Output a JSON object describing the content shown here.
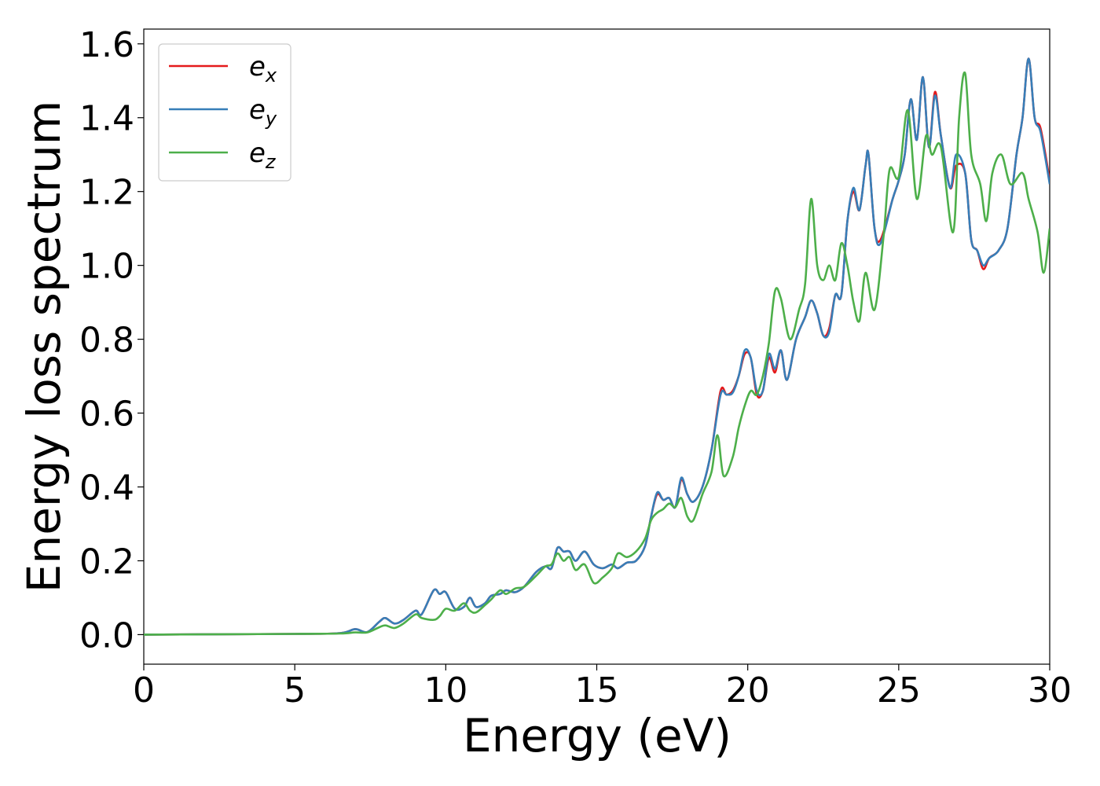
{
  "chart_data": {
    "type": "line",
    "title": "",
    "xlabel": "Energy (eV)",
    "ylabel": "Energy loss spectrum",
    "xlim": [
      0,
      30
    ],
    "ylim": [
      -0.08,
      1.64
    ],
    "xticks": [
      0,
      5,
      10,
      15,
      20,
      25,
      30
    ],
    "xtick_labels": [
      "0",
      "5",
      "10",
      "15",
      "20",
      "25",
      "30"
    ],
    "yticks": [
      0.0,
      0.2,
      0.4,
      0.6,
      0.8,
      1.0,
      1.2,
      1.4,
      1.6
    ],
    "ytick_labels": [
      "0.0",
      "0.2",
      "0.4",
      "0.6",
      "0.8",
      "1.0",
      "1.2",
      "1.4",
      "1.6"
    ],
    "grid": false,
    "legend_position": "top-left",
    "series": [
      {
        "name": "e",
        "subscript": "x",
        "color": "#e41a1c",
        "points": [
          [
            0,
            0
          ],
          [
            5,
            0.002
          ],
          [
            6.5,
            0.004
          ],
          [
            7,
            0.015
          ],
          [
            7.4,
            0.007
          ],
          [
            7.8,
            0.035
          ],
          [
            8.0,
            0.045
          ],
          [
            8.3,
            0.03
          ],
          [
            8.6,
            0.04
          ],
          [
            9.0,
            0.065
          ],
          [
            9.2,
            0.055
          ],
          [
            9.6,
            0.12
          ],
          [
            9.8,
            0.11
          ],
          [
            10.0,
            0.115
          ],
          [
            10.3,
            0.07
          ],
          [
            10.6,
            0.075
          ],
          [
            10.8,
            0.1
          ],
          [
            11.0,
            0.075
          ],
          [
            11.3,
            0.085
          ],
          [
            11.5,
            0.105
          ],
          [
            11.8,
            0.11
          ],
          [
            12.0,
            0.12
          ],
          [
            12.3,
            0.115
          ],
          [
            12.6,
            0.13
          ],
          [
            13.0,
            0.17
          ],
          [
            13.3,
            0.185
          ],
          [
            13.5,
            0.18
          ],
          [
            13.7,
            0.235
          ],
          [
            13.9,
            0.225
          ],
          [
            14.1,
            0.225
          ],
          [
            14.3,
            0.2
          ],
          [
            14.6,
            0.225
          ],
          [
            14.9,
            0.19
          ],
          [
            15.2,
            0.18
          ],
          [
            15.5,
            0.19
          ],
          [
            15.7,
            0.18
          ],
          [
            16.0,
            0.195
          ],
          [
            16.3,
            0.2
          ],
          [
            16.6,
            0.24
          ],
          [
            16.8,
            0.32
          ],
          [
            17.0,
            0.38
          ],
          [
            17.2,
            0.365
          ],
          [
            17.4,
            0.37
          ],
          [
            17.6,
            0.345
          ],
          [
            17.8,
            0.42
          ],
          [
            18.0,
            0.38
          ],
          [
            18.2,
            0.36
          ],
          [
            18.5,
            0.4
          ],
          [
            18.8,
            0.5
          ],
          [
            19.1,
            0.66
          ],
          [
            19.3,
            0.65
          ],
          [
            19.5,
            0.66
          ],
          [
            19.7,
            0.7
          ],
          [
            19.9,
            0.76
          ],
          [
            20.1,
            0.75
          ],
          [
            20.3,
            0.65
          ],
          [
            20.5,
            0.66
          ],
          [
            20.7,
            0.75
          ],
          [
            20.9,
            0.71
          ],
          [
            21.1,
            0.77
          ],
          [
            21.3,
            0.69
          ],
          [
            21.6,
            0.8
          ],
          [
            21.9,
            0.86
          ],
          [
            22.1,
            0.905
          ],
          [
            22.3,
            0.87
          ],
          [
            22.5,
            0.81
          ],
          [
            22.7,
            0.83
          ],
          [
            22.9,
            0.92
          ],
          [
            23.1,
            0.92
          ],
          [
            23.3,
            1.12
          ],
          [
            23.5,
            1.2
          ],
          [
            23.7,
            1.15
          ],
          [
            23.9,
            1.27
          ],
          [
            24.0,
            1.3
          ],
          [
            24.2,
            1.1
          ],
          [
            24.4,
            1.07
          ],
          [
            24.8,
            1.18
          ],
          [
            25.0,
            1.23
          ],
          [
            25.2,
            1.3
          ],
          [
            25.4,
            1.45
          ],
          [
            25.6,
            1.34
          ],
          [
            25.8,
            1.51
          ],
          [
            26.0,
            1.32
          ],
          [
            26.2,
            1.47
          ],
          [
            26.4,
            1.35
          ],
          [
            26.7,
            1.21
          ],
          [
            26.9,
            1.27
          ],
          [
            27.2,
            1.25
          ],
          [
            27.4,
            1.07
          ],
          [
            27.6,
            1.04
          ],
          [
            27.8,
            0.99
          ],
          [
            28.0,
            1.02
          ],
          [
            28.3,
            1.04
          ],
          [
            28.6,
            1.1
          ],
          [
            28.9,
            1.3
          ],
          [
            29.1,
            1.4
          ],
          [
            29.3,
            1.56
          ],
          [
            29.5,
            1.4
          ],
          [
            29.7,
            1.37
          ],
          [
            30.0,
            1.23
          ]
        ]
      },
      {
        "name": "e",
        "subscript": "y",
        "color": "#377eb8",
        "points": [
          [
            0,
            0
          ],
          [
            5,
            0.002
          ],
          [
            6.5,
            0.004
          ],
          [
            7,
            0.015
          ],
          [
            7.4,
            0.007
          ],
          [
            7.8,
            0.035
          ],
          [
            8.0,
            0.045
          ],
          [
            8.3,
            0.03
          ],
          [
            8.6,
            0.04
          ],
          [
            9.0,
            0.065
          ],
          [
            9.2,
            0.055
          ],
          [
            9.6,
            0.12
          ],
          [
            9.8,
            0.11
          ],
          [
            10.0,
            0.115
          ],
          [
            10.3,
            0.07
          ],
          [
            10.6,
            0.075
          ],
          [
            10.8,
            0.1
          ],
          [
            11.0,
            0.075
          ],
          [
            11.3,
            0.085
          ],
          [
            11.5,
            0.105
          ],
          [
            11.8,
            0.11
          ],
          [
            12.0,
            0.12
          ],
          [
            12.3,
            0.115
          ],
          [
            12.6,
            0.13
          ],
          [
            13.0,
            0.17
          ],
          [
            13.3,
            0.185
          ],
          [
            13.5,
            0.18
          ],
          [
            13.7,
            0.235
          ],
          [
            13.9,
            0.225
          ],
          [
            14.1,
            0.225
          ],
          [
            14.3,
            0.2
          ],
          [
            14.6,
            0.225
          ],
          [
            14.9,
            0.19
          ],
          [
            15.2,
            0.18
          ],
          [
            15.5,
            0.19
          ],
          [
            15.7,
            0.18
          ],
          [
            16.0,
            0.195
          ],
          [
            16.3,
            0.2
          ],
          [
            16.6,
            0.24
          ],
          [
            16.8,
            0.32
          ],
          [
            17.0,
            0.385
          ],
          [
            17.2,
            0.365
          ],
          [
            17.4,
            0.37
          ],
          [
            17.6,
            0.345
          ],
          [
            17.8,
            0.425
          ],
          [
            18.0,
            0.38
          ],
          [
            18.2,
            0.36
          ],
          [
            18.5,
            0.4
          ],
          [
            18.8,
            0.5
          ],
          [
            19.1,
            0.65
          ],
          [
            19.3,
            0.65
          ],
          [
            19.5,
            0.655
          ],
          [
            19.7,
            0.7
          ],
          [
            19.9,
            0.77
          ],
          [
            20.1,
            0.75
          ],
          [
            20.3,
            0.66
          ],
          [
            20.5,
            0.66
          ],
          [
            20.7,
            0.76
          ],
          [
            20.9,
            0.72
          ],
          [
            21.1,
            0.77
          ],
          [
            21.3,
            0.69
          ],
          [
            21.6,
            0.8
          ],
          [
            21.9,
            0.86
          ],
          [
            22.1,
            0.905
          ],
          [
            22.3,
            0.87
          ],
          [
            22.5,
            0.81
          ],
          [
            22.7,
            0.82
          ],
          [
            22.9,
            0.92
          ],
          [
            23.1,
            0.92
          ],
          [
            23.3,
            1.12
          ],
          [
            23.5,
            1.21
          ],
          [
            23.7,
            1.15
          ],
          [
            23.9,
            1.27
          ],
          [
            24.0,
            1.3
          ],
          [
            24.2,
            1.1
          ],
          [
            24.4,
            1.06
          ],
          [
            24.8,
            1.18
          ],
          [
            25.0,
            1.23
          ],
          [
            25.2,
            1.3
          ],
          [
            25.4,
            1.45
          ],
          [
            25.6,
            1.34
          ],
          [
            25.8,
            1.51
          ],
          [
            26.0,
            1.32
          ],
          [
            26.2,
            1.46
          ],
          [
            26.4,
            1.35
          ],
          [
            26.7,
            1.21
          ],
          [
            26.9,
            1.3
          ],
          [
            27.2,
            1.25
          ],
          [
            27.4,
            1.07
          ],
          [
            27.6,
            1.04
          ],
          [
            27.8,
            1.0
          ],
          [
            28.0,
            1.02
          ],
          [
            28.3,
            1.04
          ],
          [
            28.6,
            1.1
          ],
          [
            28.9,
            1.3
          ],
          [
            29.1,
            1.4
          ],
          [
            29.3,
            1.56
          ],
          [
            29.5,
            1.4
          ],
          [
            29.7,
            1.36
          ],
          [
            30.0,
            1.22
          ]
        ]
      },
      {
        "name": "e",
        "subscript": "z",
        "color": "#4daf4a",
        "points": [
          [
            0,
            0
          ],
          [
            5,
            0.002
          ],
          [
            6.5,
            0.003
          ],
          [
            7,
            0.006
          ],
          [
            7.4,
            0.006
          ],
          [
            7.8,
            0.02
          ],
          [
            8.0,
            0.025
          ],
          [
            8.3,
            0.018
          ],
          [
            8.6,
            0.03
          ],
          [
            9.0,
            0.055
          ],
          [
            9.2,
            0.045
          ],
          [
            9.6,
            0.04
          ],
          [
            9.8,
            0.05
          ],
          [
            10.0,
            0.07
          ],
          [
            10.3,
            0.065
          ],
          [
            10.6,
            0.085
          ],
          [
            10.8,
            0.065
          ],
          [
            11.0,
            0.06
          ],
          [
            11.3,
            0.08
          ],
          [
            11.5,
            0.095
          ],
          [
            11.8,
            0.12
          ],
          [
            12.0,
            0.11
          ],
          [
            12.3,
            0.125
          ],
          [
            12.6,
            0.13
          ],
          [
            13.0,
            0.16
          ],
          [
            13.3,
            0.185
          ],
          [
            13.5,
            0.19
          ],
          [
            13.7,
            0.22
          ],
          [
            13.9,
            0.2
          ],
          [
            14.1,
            0.21
          ],
          [
            14.3,
            0.175
          ],
          [
            14.6,
            0.19
          ],
          [
            14.9,
            0.14
          ],
          [
            15.2,
            0.155
          ],
          [
            15.5,
            0.18
          ],
          [
            15.7,
            0.22
          ],
          [
            16.0,
            0.21
          ],
          [
            16.3,
            0.225
          ],
          [
            16.6,
            0.26
          ],
          [
            16.8,
            0.31
          ],
          [
            17.0,
            0.33
          ],
          [
            17.2,
            0.34
          ],
          [
            17.4,
            0.355
          ],
          [
            17.6,
            0.345
          ],
          [
            17.8,
            0.37
          ],
          [
            18.0,
            0.32
          ],
          [
            18.2,
            0.31
          ],
          [
            18.5,
            0.38
          ],
          [
            18.8,
            0.44
          ],
          [
            19.0,
            0.54
          ],
          [
            19.2,
            0.43
          ],
          [
            19.5,
            0.48
          ],
          [
            19.7,
            0.56
          ],
          [
            19.9,
            0.62
          ],
          [
            20.1,
            0.66
          ],
          [
            20.3,
            0.65
          ],
          [
            20.5,
            0.7
          ],
          [
            20.7,
            0.79
          ],
          [
            20.9,
            0.93
          ],
          [
            21.1,
            0.91
          ],
          [
            21.4,
            0.8
          ],
          [
            21.7,
            0.88
          ],
          [
            21.9,
            0.95
          ],
          [
            22.1,
            1.18
          ],
          [
            22.3,
            1.0
          ],
          [
            22.5,
            0.96
          ],
          [
            22.7,
            1.0
          ],
          [
            22.9,
            0.96
          ],
          [
            23.1,
            1.06
          ],
          [
            23.3,
            1.0
          ],
          [
            23.5,
            0.9
          ],
          [
            23.7,
            0.85
          ],
          [
            23.9,
            0.98
          ],
          [
            24.2,
            0.88
          ],
          [
            24.5,
            1.08
          ],
          [
            24.7,
            1.26
          ],
          [
            25.0,
            1.24
          ],
          [
            25.3,
            1.42
          ],
          [
            25.6,
            1.18
          ],
          [
            25.9,
            1.35
          ],
          [
            26.1,
            1.3
          ],
          [
            26.4,
            1.32
          ],
          [
            26.8,
            1.09
          ],
          [
            27.0,
            1.4
          ],
          [
            27.2,
            1.52
          ],
          [
            27.4,
            1.3
          ],
          [
            27.7,
            1.22
          ],
          [
            27.9,
            1.12
          ],
          [
            28.1,
            1.25
          ],
          [
            28.4,
            1.3
          ],
          [
            28.7,
            1.22
          ],
          [
            29.1,
            1.25
          ],
          [
            29.3,
            1.18
          ],
          [
            29.6,
            1.09
          ],
          [
            29.8,
            0.98
          ],
          [
            30.0,
            1.1
          ]
        ]
      }
    ]
  }
}
